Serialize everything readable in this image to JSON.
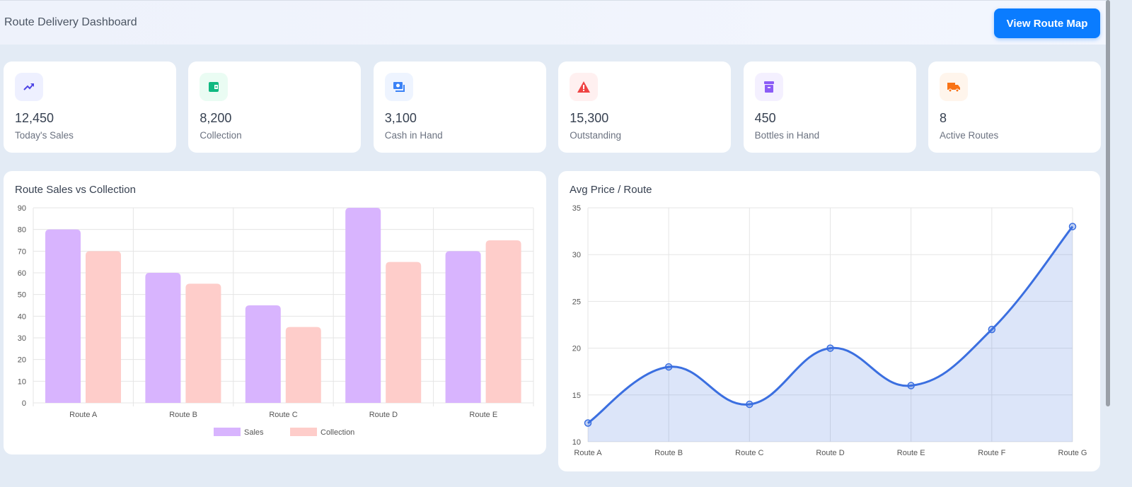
{
  "header": {
    "title": "Route Delivery Dashboard",
    "button": "View Route Map"
  },
  "cards": [
    {
      "value": "12,450",
      "label": "Today's Sales",
      "icon": "trending-up-icon",
      "color": "#4f46e5",
      "bg": "#eef0ff"
    },
    {
      "value": "8,200",
      "label": "Collection",
      "icon": "wallet-icon",
      "color": "#10b981",
      "bg": "#eafcf3"
    },
    {
      "value": "3,100",
      "label": "Cash in Hand",
      "icon": "money-icon",
      "color": "#3b82f6",
      "bg": "#eef4ff"
    },
    {
      "value": "15,300",
      "label": "Outstanding",
      "icon": "warning-icon",
      "color": "#ef4444",
      "bg": "#fff0f0"
    },
    {
      "value": "450",
      "label": "Bottles in Hand",
      "icon": "archive-box-icon",
      "color": "#8b5cf6",
      "bg": "#f4f0ff"
    },
    {
      "value": "8",
      "label": "Active Routes",
      "icon": "truck-icon",
      "color": "#f97316",
      "bg": "#fff5ec"
    }
  ],
  "chart_data": [
    {
      "type": "bar",
      "title": "Route Sales vs Collection",
      "categories": [
        "Route A",
        "Route B",
        "Route C",
        "Route D",
        "Route E"
      ],
      "series": [
        {
          "name": "Sales",
          "values": [
            80,
            60,
            45,
            90,
            70
          ],
          "color": "#d8b4fe"
        },
        {
          "name": "Collection",
          "values": [
            70,
            55,
            35,
            65,
            75
          ],
          "color": "#fecdca"
        }
      ],
      "ylim": [
        0,
        90
      ],
      "yticks": [
        0,
        10,
        20,
        30,
        40,
        50,
        60,
        70,
        80,
        90
      ],
      "grid": true,
      "legend": "bottom"
    },
    {
      "type": "area",
      "title": "Avg Price / Route",
      "categories": [
        "Route A",
        "Route B",
        "Route C",
        "Route D",
        "Route E",
        "Route F",
        "Route G"
      ],
      "values": [
        12,
        18,
        14,
        20,
        16,
        22,
        33
      ],
      "ylim": [
        10,
        35
      ],
      "yticks": [
        10,
        15,
        20,
        25,
        30,
        35
      ],
      "color": "#3b6fe0",
      "grid": true
    }
  ]
}
